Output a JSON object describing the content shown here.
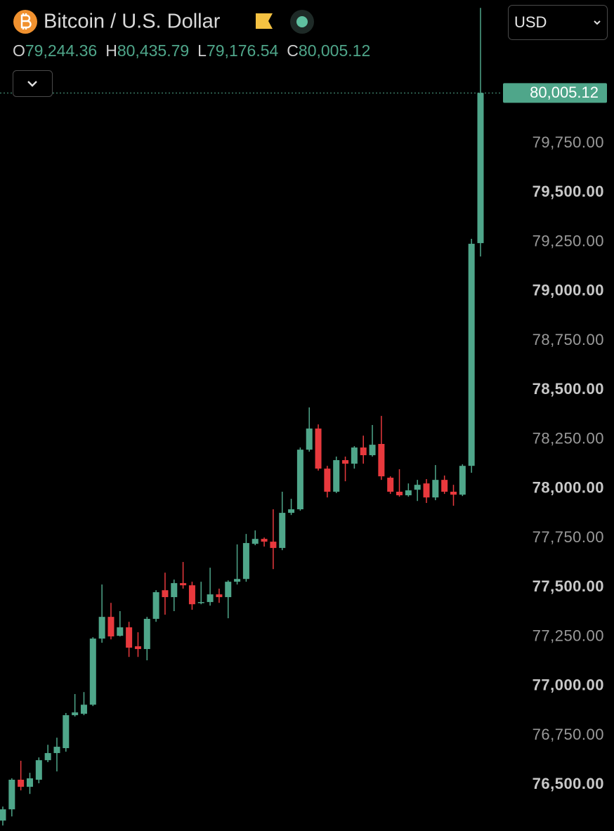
{
  "chart_data": {
    "type": "candlestick",
    "title": "Bitcoin / U.S. Dollar",
    "currency": "USD",
    "legend": [
      {
        "key": "O",
        "text": "79,244.36"
      },
      {
        "key": "H",
        "text": "80,435.79"
      },
      {
        "key": "L",
        "text": "79,176.54"
      },
      {
        "key": "C",
        "text": "80,005.12"
      }
    ],
    "last_price_label": "80,005.12",
    "up_color": "#4fa68a",
    "down_color": "#e8393d",
    "open": [
      76319,
      76376,
      76526,
      76490,
      76526,
      76625,
      76661,
      76686,
      76853,
      76860,
      76906,
      77241,
      77351,
      77255,
      77298,
      77202,
      77188,
      77341,
      77486,
      77451,
      77522,
      77511,
      77422,
      77426,
      77465,
      77451,
      77529,
      77543,
      77721,
      77746,
      77732,
      77700,
      77878,
      77896,
      78198,
      78305,
      78102,
      77985,
      78145,
      78127,
      78209,
      78170,
      78227,
      78056,
      77985,
      77967,
      77995,
      78027,
      77956,
      78045,
      77985,
      77970,
      78116,
      79244.36
    ],
    "high": [
      76390,
      76533,
      76622,
      76561,
      76639,
      76703,
      76739,
      76864,
      76960,
      76970,
      77248,
      77515,
      77422,
      77380,
      77326,
      77273,
      77351,
      77486,
      77575,
      77540,
      77629,
      77529,
      77529,
      77600,
      77494,
      77536,
      77718,
      77771,
      77789,
      77753,
      77896,
      77985,
      77949,
      78209,
      78412,
      78326,
      78116,
      78163,
      78163,
      78216,
      78269,
      78323,
      78369,
      78063,
      78099,
      78027,
      78045,
      78049,
      78120,
      78067,
      78020,
      78124,
      79266,
      80435.79
    ],
    "low": [
      76294,
      76340,
      76472,
      76454,
      76508,
      76615,
      76568,
      76668,
      76846,
      76853,
      76899,
      77220,
      77237,
      77252,
      77148,
      77148,
      77131,
      77326,
      77362,
      77380,
      77494,
      77387,
      77415,
      77408,
      77422,
      77344,
      77515,
      77529,
      77714,
      77707,
      77593,
      77689,
      77867,
      77889,
      78188,
      78092,
      77956,
      77978,
      78038,
      78102,
      78127,
      78163,
      78045,
      77974,
      77960,
      77960,
      77938,
      77928,
      77942,
      77974,
      77914,
      77963,
      78081,
      79176.54
    ],
    "close": [
      76376,
      76526,
      76490,
      76533,
      76625,
      76661,
      76693,
      76853,
      76867,
      76906,
      77241,
      77351,
      77252,
      77298,
      77195,
      77188,
      77341,
      77476,
      77451,
      77522,
      77511,
      77415,
      77426,
      77465,
      77451,
      77529,
      77543,
      77725,
      77746,
      77732,
      77700,
      77878,
      77896,
      78198,
      78305,
      78102,
      77985,
      78145,
      78127,
      78209,
      78170,
      78223,
      78063,
      77985,
      77967,
      77992,
      78020,
      77956,
      78045,
      77985,
      77970,
      78116,
      79241,
      80005.12
    ],
    "ylim": [
      76284,
      80476
    ],
    "yticks": [
      {
        "value": 76500,
        "label": "76,500.00"
      },
      {
        "value": 76750,
        "label": "76,750.00"
      },
      {
        "value": 77000,
        "label": "77,000.00"
      },
      {
        "value": 77250,
        "label": "77,250.00"
      },
      {
        "value": 77500,
        "label": "77,500.00"
      },
      {
        "value": 77750,
        "label": "77,750.00"
      },
      {
        "value": 78000,
        "label": "78,000.00"
      },
      {
        "value": 78250,
        "label": "78,250.00"
      },
      {
        "value": 78500,
        "label": "78,500.00"
      },
      {
        "value": 78750,
        "label": "78,750.00"
      },
      {
        "value": 79000,
        "label": "79,000.00"
      },
      {
        "value": 79250,
        "label": "79,250.00"
      },
      {
        "value": 79500,
        "label": "79,500.00"
      },
      {
        "value": 79750,
        "label": "79,750.00"
      }
    ]
  }
}
